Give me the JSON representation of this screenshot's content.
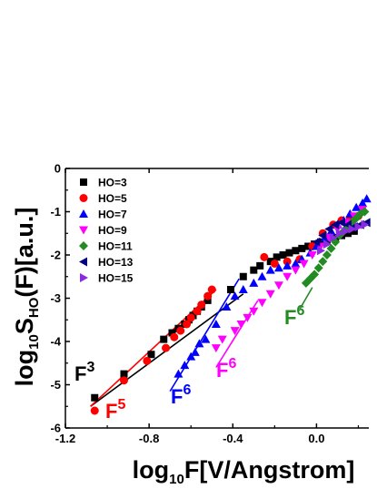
{
  "chart_data": {
    "type": "scatter",
    "title": "",
    "xlabel": {
      "prefix": "log",
      "sub": "10",
      "rest": "F[V/Angstrom]"
    },
    "ylabel": {
      "prefix": "log",
      "sub": "10",
      "mid": "S",
      "sub2": "HO",
      "rest": "(F)[a.u.]"
    },
    "xlim": [
      -1.2,
      0.25
    ],
    "ylim": [
      -6,
      0
    ],
    "x_ticks": [
      -1.2,
      -0.8,
      -0.4,
      0.0
    ],
    "x_tick_labels": [
      "-1.2",
      "-0.8",
      "-0.4",
      "0.0"
    ],
    "y_ticks": [
      0,
      -1,
      -2,
      -3,
      -4,
      -5,
      -6
    ],
    "y_tick_labels": [
      "0",
      "-1",
      "-2",
      "-3",
      "-4",
      "-5",
      "-6"
    ],
    "grid": false,
    "legend_position": "top-left",
    "series": [
      {
        "name": "HO=3",
        "marker": "square",
        "color": "#000000",
        "x": [
          -1.06,
          -0.92,
          -0.79,
          -0.73,
          -0.69,
          -0.66,
          -0.63,
          -0.61,
          -0.59,
          -0.57,
          -0.55,
          -0.52,
          -0.41,
          -0.35,
          -0.3,
          -0.27,
          -0.22,
          -0.19,
          -0.16,
          -0.13,
          -0.1,
          -0.07,
          -0.04,
          -0.01,
          0.02,
          0.05,
          0.09,
          0.12,
          0.15,
          0.18
        ],
        "y": [
          -5.3,
          -4.75,
          -4.3,
          -3.95,
          -3.8,
          -3.7,
          -3.6,
          -3.5,
          -3.4,
          -3.3,
          -3.2,
          -3.05,
          -2.8,
          -2.5,
          -2.35,
          -2.25,
          -2.15,
          -2.05,
          -2.0,
          -1.95,
          -1.9,
          -1.85,
          -1.8,
          -1.75,
          -1.7,
          -1.65,
          -1.6,
          -1.55,
          -1.5,
          -1.45
        ]
      },
      {
        "name": "HO=5",
        "marker": "circle",
        "color": "#ff0000",
        "x": [
          -1.06,
          -0.92,
          -0.81,
          -0.72,
          -0.68,
          -0.65,
          -0.62,
          -0.6,
          -0.57,
          -0.55,
          -0.52,
          -0.5,
          -0.25,
          -0.2,
          -0.14,
          -0.08,
          -0.02,
          0.03,
          0.08,
          0.12,
          0.16,
          0.2
        ],
        "y": [
          -5.6,
          -4.9,
          -4.45,
          -4.15,
          -3.9,
          -3.75,
          -3.6,
          -3.45,
          -3.3,
          -3.15,
          -2.95,
          -2.8,
          -2.05,
          -2.2,
          -2.15,
          -2.1,
          -1.8,
          -1.5,
          -1.3,
          -1.2,
          -1.15,
          -1.1
        ]
      },
      {
        "name": "HO=7",
        "marker": "triangle-up",
        "color": "#0000ff",
        "x": [
          -0.66,
          -0.63,
          -0.6,
          -0.58,
          -0.56,
          -0.53,
          -0.48,
          -0.43,
          -0.39,
          -0.35,
          -0.3,
          -0.26,
          -0.22,
          -0.18,
          -0.14,
          -0.1,
          -0.07,
          -0.03,
          0.0,
          0.04,
          0.07,
          0.1,
          0.13,
          0.16,
          0.19,
          0.22,
          0.24
        ],
        "y": [
          -4.75,
          -4.55,
          -4.35,
          -4.25,
          -4.05,
          -3.95,
          -3.6,
          -3.2,
          -2.95,
          -2.8,
          -2.65,
          -2.5,
          -2.35,
          -2.3,
          -2.25,
          -2.2,
          -2.1,
          -1.95,
          -1.8,
          -1.6,
          -1.45,
          -1.3,
          -1.2,
          -1.05,
          -0.9,
          -0.8,
          -0.7
        ]
      },
      {
        "name": "HO=9",
        "marker": "triangle-down",
        "color": "#ff00ff",
        "x": [
          -0.48,
          -0.45,
          -0.39,
          -0.36,
          -0.33,
          -0.3,
          -0.26,
          -0.22,
          -0.18,
          -0.14,
          -0.1,
          -0.06,
          -0.02,
          0.02,
          0.06,
          0.1,
          0.14,
          0.18,
          0.22
        ],
        "y": [
          -4.15,
          -3.95,
          -3.75,
          -3.6,
          -3.45,
          -3.3,
          -3.1,
          -2.9,
          -2.7,
          -2.5,
          -2.35,
          -2.2,
          -2.0,
          -1.8,
          -1.6,
          -1.4,
          -1.25,
          -1.1,
          -0.95
        ]
      },
      {
        "name": "HO=11",
        "marker": "diamond",
        "color": "#228B22",
        "x": [
          -0.05,
          -0.03,
          -0.01,
          0.01,
          0.03,
          0.05,
          0.07,
          0.09,
          0.11,
          0.13,
          0.15,
          0.17,
          0.19,
          0.21,
          0.23
        ],
        "y": [
          -2.65,
          -2.55,
          -2.45,
          -2.3,
          -2.15,
          -2.0,
          -1.85,
          -1.7,
          -1.55,
          -1.45,
          -1.35,
          -1.25,
          -1.15,
          -1.05,
          -1.0
        ]
      },
      {
        "name": "HO=13",
        "marker": "triangle-left",
        "color": "#000080",
        "x": [
          0.0,
          0.03,
          0.06,
          0.09,
          0.12,
          0.15,
          0.18,
          0.21,
          0.24
        ],
        "y": [
          -1.7,
          -1.55,
          -1.4,
          -1.3,
          -1.25,
          -1.3,
          -1.35,
          -1.3,
          -1.25
        ]
      },
      {
        "name": "HO=15",
        "marker": "triangle-right",
        "color": "#8a2be2",
        "x": [
          0.02,
          0.05,
          0.08,
          0.11,
          0.14,
          0.17,
          0.2,
          0.23
        ],
        "y": [
          -1.9,
          -1.75,
          -1.6,
          -1.5,
          -1.45,
          -1.4,
          -1.35,
          -1.3
        ]
      }
    ],
    "fit_lines": [
      {
        "color": "#000000",
        "x": [
          -1.08,
          -0.35
        ],
        "y": [
          -5.5,
          -2.9
        ]
      },
      {
        "color": "#ff0000",
        "x": [
          -1.08,
          -0.48
        ],
        "y": [
          -5.5,
          -2.8
        ]
      },
      {
        "color": "#0000ff",
        "x": [
          -0.7,
          -0.37
        ],
        "y": [
          -5.15,
          -2.55
        ]
      },
      {
        "color": "#ff00ff",
        "x": [
          -0.48,
          -0.28
        ],
        "y": [
          -4.6,
          -3.05
        ]
      },
      {
        "color": "#228B22",
        "x": [
          -0.08,
          -0.02
        ],
        "y": [
          -3.25,
          -2.75
        ]
      }
    ],
    "annotations": [
      {
        "base": "F",
        "exp": "3",
        "color": "#000000"
      },
      {
        "base": "F",
        "exp": "5",
        "color": "#ff0000"
      },
      {
        "base": "F",
        "exp": "6",
        "color": "#0000ff"
      },
      {
        "base": "F",
        "exp": "6",
        "color": "#ff00ff"
      },
      {
        "base": "F",
        "exp": "6",
        "color": "#228B22"
      }
    ]
  }
}
